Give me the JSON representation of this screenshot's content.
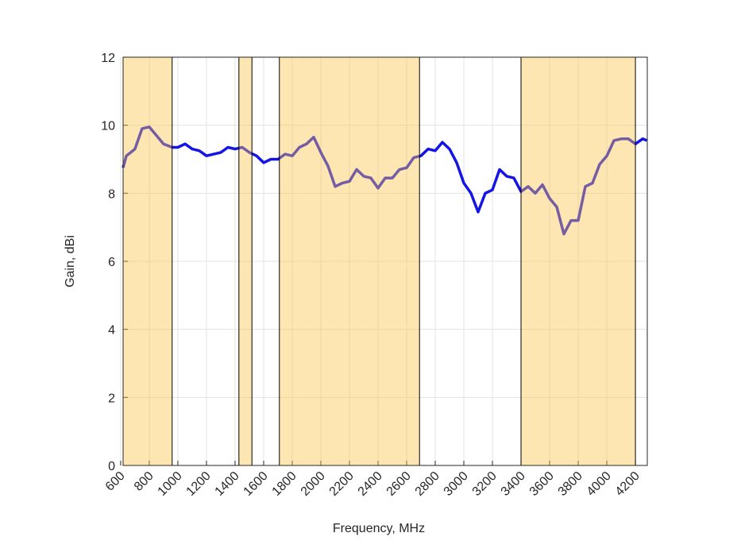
{
  "chart_data": {
    "type": "line",
    "xlabel": "Frequency, MHz",
    "ylabel": "Gain, dBi",
    "x": [
      617,
      640,
      700,
      750,
      800,
      850,
      900,
      960,
      1000,
      1050,
      1100,
      1150,
      1200,
      1250,
      1300,
      1350,
      1400,
      1450,
      1500,
      1550,
      1600,
      1650,
      1700,
      1750,
      1800,
      1850,
      1900,
      1950,
      2000,
      2050,
      2100,
      2150,
      2200,
      2250,
      2300,
      2350,
      2400,
      2450,
      2500,
      2550,
      2600,
      2650,
      2700,
      2750,
      2800,
      2850,
      2900,
      2950,
      3000,
      3050,
      3100,
      3150,
      3200,
      3250,
      3300,
      3350,
      3400,
      3450,
      3500,
      3550,
      3600,
      3650,
      3700,
      3750,
      3800,
      3850,
      3900,
      3950,
      4000,
      4050,
      4100,
      4150,
      4200,
      4250,
      4280
    ],
    "series": [
      {
        "color": "#1414e6",
        "values": [
          8.75,
          9.1,
          9.3,
          9.9,
          9.95,
          9.7,
          9.45,
          9.35,
          9.35,
          9.45,
          9.3,
          9.25,
          9.1,
          9.15,
          9.2,
          9.35,
          9.3,
          9.35,
          9.2,
          9.1,
          8.9,
          9.0,
          9.0,
          9.15,
          9.1,
          9.35,
          9.45,
          9.65,
          9.2,
          8.8,
          8.2,
          8.3,
          8.35,
          8.7,
          8.5,
          8.45,
          8.15,
          8.45,
          8.45,
          8.7,
          8.75,
          9.05,
          9.1,
          9.3,
          9.25,
          9.5,
          9.3,
          8.9,
          8.3,
          8.0,
          7.45,
          8.0,
          8.1,
          8.7,
          8.5,
          8.45,
          8.05,
          8.2,
          8.0,
          8.25,
          7.85,
          7.6,
          6.8,
          7.2,
          7.2,
          8.2,
          8.3,
          8.85,
          9.1,
          9.55,
          9.6,
          9.6,
          9.45,
          9.6,
          9.55
        ]
      }
    ],
    "shaded_bands": [
      {
        "start": 617,
        "end": 960
      },
      {
        "start": 1427,
        "end": 1518
      },
      {
        "start": 1710,
        "end": 2690
      },
      {
        "start": 3400,
        "end": 4200
      }
    ],
    "band_color": "#fcc44a",
    "xlim": [
      617,
      4283
    ],
    "ylim": [
      0,
      12
    ],
    "xticks": [
      600,
      800,
      1000,
      1200,
      1400,
      1600,
      1800,
      2000,
      2200,
      2400,
      2600,
      2800,
      3000,
      3200,
      3400,
      3600,
      3800,
      4000,
      4200
    ],
    "yticks": [
      0,
      2,
      4,
      6,
      8,
      10,
      12
    ],
    "grid": true
  }
}
